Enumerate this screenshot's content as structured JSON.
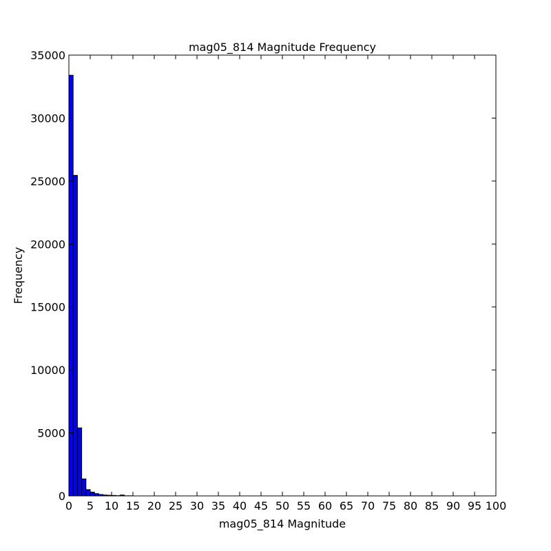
{
  "chart_data": {
    "type": "bar",
    "title": "mag05_814 Magnitude Frequency",
    "xlabel": "mag05_814 Magnitude",
    "ylabel": "Frequency",
    "xlim": [
      0,
      100
    ],
    "ylim": [
      0,
      35000
    ],
    "xticks": [
      "0",
      "5",
      "10",
      "15",
      "20",
      "25",
      "30",
      "35",
      "40",
      "45",
      "50",
      "55",
      "60",
      "65",
      "70",
      "75",
      "80",
      "85",
      "90",
      "95",
      "100"
    ],
    "yticks": [
      "0",
      "5000",
      "10000",
      "15000",
      "20000",
      "25000",
      "30000",
      "35000"
    ],
    "bin_width": 1,
    "bins": [
      {
        "x0": 0,
        "x1": 1,
        "value": 33400
      },
      {
        "x0": 1,
        "x1": 2,
        "value": 25450
      },
      {
        "x0": 2,
        "x1": 3,
        "value": 5400
      },
      {
        "x0": 3,
        "x1": 4,
        "value": 1350
      },
      {
        "x0": 4,
        "x1": 5,
        "value": 500
      },
      {
        "x0": 5,
        "x1": 6,
        "value": 300
      },
      {
        "x0": 6,
        "x1": 7,
        "value": 180
      },
      {
        "x0": 7,
        "x1": 8,
        "value": 110
      },
      {
        "x0": 8,
        "x1": 9,
        "value": 70
      },
      {
        "x0": 9,
        "x1": 10,
        "value": 50
      },
      {
        "x0": 10,
        "x1": 11,
        "value": 40
      },
      {
        "x0": 11,
        "x1": 12,
        "value": 20
      },
      {
        "x0": 12,
        "x1": 13,
        "value": 70
      },
      {
        "x0": 13,
        "x1": 14,
        "value": 10
      },
      {
        "x0": 14,
        "x1": 15,
        "value": 10
      }
    ],
    "bar_color": "#0000ff",
    "grid": false,
    "legend": "none"
  }
}
